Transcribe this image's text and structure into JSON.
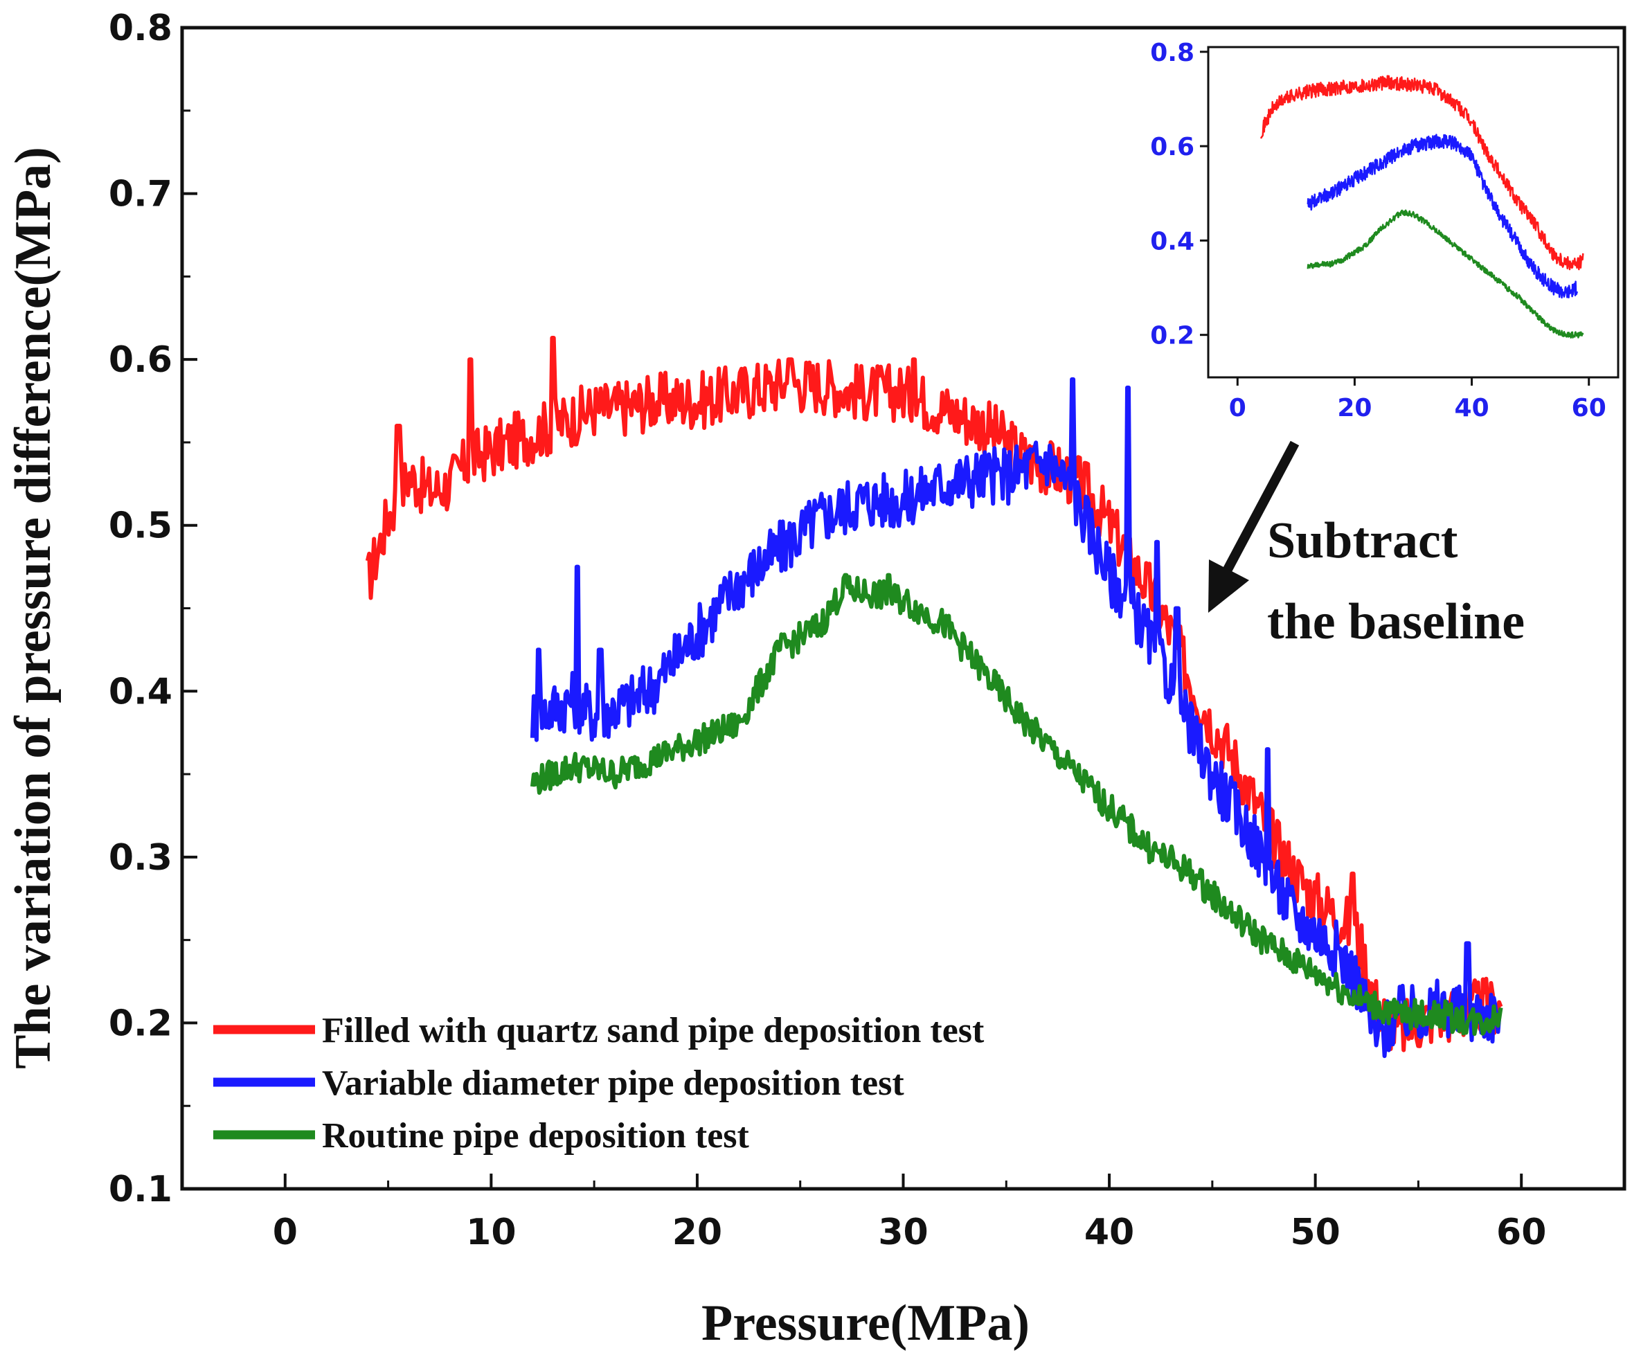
{
  "chart_data": [
    {
      "type": "line",
      "xlabel": "Pressure(MPa)",
      "ylabel": "The variation of pressure difference(MPa)",
      "xlim": [
        -5,
        65
      ],
      "ylim": [
        0.1,
        0.8
      ],
      "xticks": [
        "0",
        "10",
        "20",
        "30",
        "40",
        "50",
        "60"
      ],
      "yticks": [
        "0.1",
        "0.2",
        "0.3",
        "0.4",
        "0.5",
        "0.6",
        "0.7",
        "0.8"
      ],
      "series": [
        {
          "name": "Filled with quartz sand pipe deposition test",
          "color": "#ff1a1a",
          "x": [
            4,
            5,
            6,
            7,
            8,
            9,
            10,
            11,
            12,
            13,
            14,
            15,
            16,
            18,
            20,
            22,
            24,
            26,
            28,
            30,
            32,
            34,
            35,
            36,
            37,
            38,
            39,
            40,
            41,
            42,
            43,
            44,
            45,
            46,
            47,
            48,
            49,
            50,
            51,
            52,
            53,
            54,
            55,
            56,
            57,
            58,
            59
          ],
          "y": [
            0.465,
            0.505,
            0.53,
            0.52,
            0.525,
            0.54,
            0.545,
            0.55,
            0.555,
            0.56,
            0.565,
            0.57,
            0.57,
            0.575,
            0.575,
            0.58,
            0.585,
            0.585,
            0.58,
            0.58,
            0.57,
            0.56,
            0.55,
            0.54,
            0.535,
            0.53,
            0.52,
            0.5,
            0.48,
            0.46,
            0.435,
            0.405,
            0.38,
            0.36,
            0.335,
            0.31,
            0.29,
            0.275,
            0.265,
            0.255,
            0.21,
            0.195,
            0.2,
            0.205,
            0.205,
            0.21,
            0.21
          ],
          "noise": 0.035,
          "spikes": [
            [
              5.5,
              0.56
            ],
            [
              9,
              0.6
            ],
            [
              13,
              0.613
            ],
            [
              24.5,
              0.6
            ],
            [
              30.5,
              0.6
            ],
            [
              51.8,
              0.29
            ]
          ]
        },
        {
          "name": "Variable diameter pipe deposition test",
          "color": "#1a1aff",
          "x": [
            12,
            13,
            14,
            15,
            16,
            17,
            18,
            20,
            22,
            24,
            26,
            28,
            30,
            32,
            34,
            35,
            36,
            37,
            38,
            39,
            40,
            41,
            42,
            43,
            44,
            45,
            46,
            47,
            48,
            49,
            50,
            51,
            52,
            53,
            54,
            55,
            56,
            57,
            58,
            59
          ],
          "y": [
            0.385,
            0.39,
            0.395,
            0.385,
            0.39,
            0.395,
            0.405,
            0.435,
            0.465,
            0.485,
            0.505,
            0.515,
            0.515,
            0.525,
            0.53,
            0.53,
            0.535,
            0.54,
            0.525,
            0.5,
            0.47,
            0.455,
            0.43,
            0.405,
            0.375,
            0.35,
            0.33,
            0.31,
            0.285,
            0.265,
            0.255,
            0.245,
            0.225,
            0.19,
            0.205,
            0.205,
            0.21,
            0.205,
            0.205,
            0.205
          ],
          "noise": 0.035,
          "spikes": [
            [
              12.3,
              0.425
            ],
            [
              14.2,
              0.475
            ],
            [
              15.3,
              0.425
            ],
            [
              38.2,
              0.588
            ],
            [
              40.9,
              0.583
            ],
            [
              42.3,
              0.49
            ],
            [
              43.3,
              0.45
            ],
            [
              47.7,
              0.365
            ],
            [
              57.4,
              0.248
            ]
          ]
        },
        {
          "name": "Routine pipe deposition test",
          "color": "#1f8a1f",
          "x": [
            12,
            14,
            16,
            18,
            20,
            22,
            24,
            26,
            27,
            28,
            30,
            32,
            34,
            36,
            38,
            40,
            42,
            44,
            46,
            48,
            50,
            52,
            54,
            56,
            58,
            59
          ],
          "y": [
            0.345,
            0.355,
            0.35,
            0.36,
            0.37,
            0.38,
            0.425,
            0.44,
            0.46,
            0.46,
            0.455,
            0.44,
            0.41,
            0.38,
            0.355,
            0.33,
            0.305,
            0.29,
            0.265,
            0.245,
            0.23,
            0.215,
            0.205,
            0.205,
            0.2,
            0.205
          ],
          "noise": 0.018,
          "spikes": [
            [
              27.2,
              0.47
            ],
            [
              29.3,
              0.47
            ]
          ]
        }
      ],
      "legend": "bottom-left"
    },
    {
      "type": "line",
      "title": "inset",
      "xlim": [
        -5,
        65
      ],
      "ylim": [
        0.11,
        0.81
      ],
      "xticks": [
        "0",
        "20",
        "40",
        "60"
      ],
      "yticks": [
        "0.2",
        "0.4",
        "0.6",
        "0.8"
      ],
      "ytick_color": "#2020ee",
      "series": [
        {
          "name": "Filled with quartz sand pipe deposition test",
          "color": "#ff1a1a",
          "x": [
            4,
            6,
            8,
            10,
            14,
            18,
            22,
            26,
            30,
            34,
            36,
            38,
            40,
            42,
            44,
            46,
            48,
            50,
            52,
            54,
            56,
            58,
            59
          ],
          "y": [
            0.63,
            0.68,
            0.7,
            0.71,
            0.72,
            0.725,
            0.73,
            0.735,
            0.73,
            0.72,
            0.7,
            0.68,
            0.65,
            0.6,
            0.56,
            0.52,
            0.48,
            0.45,
            0.41,
            0.37,
            0.355,
            0.35,
            0.36
          ],
          "noise": 0.03
        },
        {
          "name": "Variable diameter pipe deposition test",
          "color": "#1a1aff",
          "x": [
            12,
            14,
            16,
            18,
            20,
            22,
            24,
            26,
            28,
            30,
            32,
            34,
            36,
            38,
            40,
            42,
            44,
            46,
            48,
            50,
            52,
            54,
            56,
            58
          ],
          "y": [
            0.475,
            0.49,
            0.5,
            0.515,
            0.53,
            0.545,
            0.56,
            0.575,
            0.59,
            0.6,
            0.605,
            0.61,
            0.61,
            0.6,
            0.58,
            0.52,
            0.47,
            0.43,
            0.39,
            0.35,
            0.32,
            0.3,
            0.29,
            0.3
          ],
          "noise": 0.03
        },
        {
          "name": "Routine pipe deposition test",
          "color": "#1f8a1f",
          "x": [
            12,
            14,
            16,
            18,
            20,
            22,
            24,
            26,
            28,
            30,
            32,
            34,
            36,
            38,
            40,
            42,
            44,
            46,
            48,
            50,
            52,
            54,
            56,
            58,
            59
          ],
          "y": [
            0.345,
            0.35,
            0.35,
            0.36,
            0.375,
            0.39,
            0.42,
            0.44,
            0.46,
            0.455,
            0.44,
            0.42,
            0.4,
            0.38,
            0.36,
            0.34,
            0.32,
            0.3,
            0.28,
            0.255,
            0.23,
            0.21,
            0.2,
            0.2,
            0.2
          ],
          "noise": 0.012
        }
      ]
    }
  ],
  "annotation": {
    "line1": "Subtract",
    "line2": "the baseline"
  }
}
